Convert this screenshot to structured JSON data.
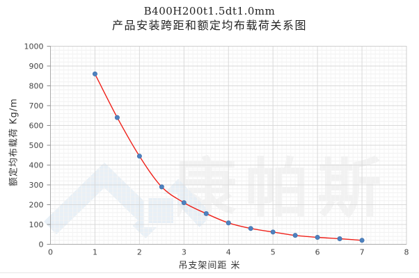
{
  "title": {
    "line1": "B400H200t1.5dt1.0mm",
    "line2": "产品安装跨距和额定均布载荷关系图"
  },
  "watermark": {
    "text": "康帕斯",
    "logo": "chevron-mountain-logo"
  },
  "chart_data": {
    "type": "scatter",
    "title": "B400H200t1.5dt1.0mm 产品安装跨距和额定均布载荷关系图",
    "xlabel": "吊支架间距  米",
    "ylabel": "额定均布载荷  Kg/m",
    "x": [
      1,
      1.5,
      2,
      2.5,
      3,
      3.5,
      4,
      4.5,
      5,
      5.5,
      6,
      6.5,
      7
    ],
    "series": [
      {
        "name": "额定均布载荷",
        "values": [
          860,
          640,
          445,
          290,
          210,
          155,
          108,
          80,
          62,
          45,
          35,
          28,
          20
        ]
      }
    ],
    "trendline": {
      "type": "smooth-exponential-fit",
      "color": "#ef2019"
    },
    "xlim": [
      0,
      8
    ],
    "ylim": [
      0,
      1000
    ],
    "x_ticks": [
      0,
      1,
      2,
      3,
      4,
      5,
      6,
      7,
      8
    ],
    "y_ticks": [
      0,
      100,
      200,
      300,
      400,
      500,
      600,
      700,
      800,
      900,
      1000
    ],
    "grid": {
      "major": true,
      "minor": true,
      "minor_y_step": 20,
      "minor_x_step": 0.1
    },
    "legend": "none",
    "point_color": "#4d81bf",
    "line_color": "#ef2019",
    "major_grid_color": "#d9d9d9",
    "minor_grid_color": "#f0f0f0",
    "axis_color": "#ababab"
  }
}
